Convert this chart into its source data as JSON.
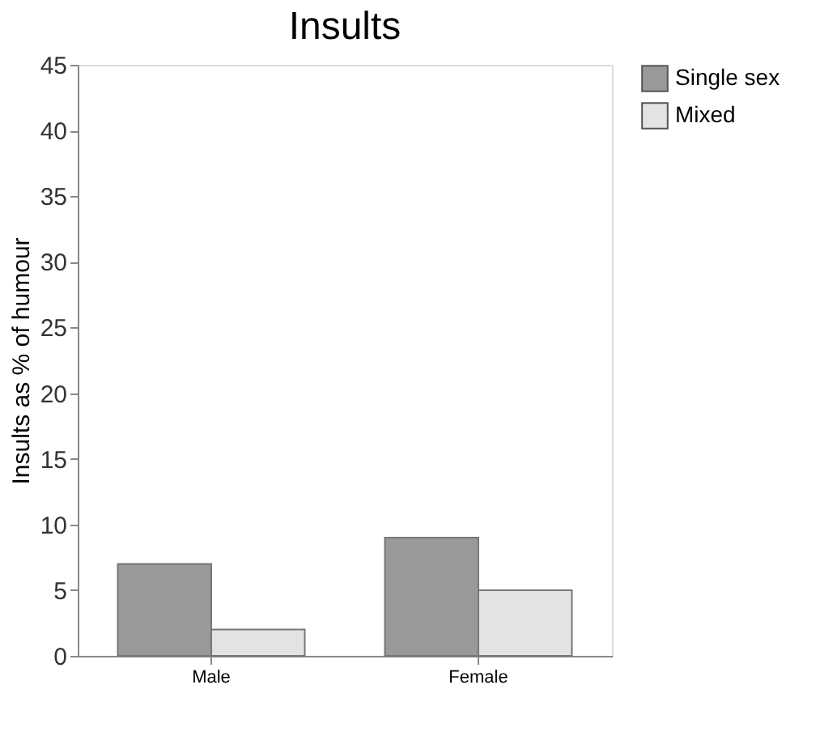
{
  "chart_data": {
    "type": "bar",
    "title": "Insults",
    "ylabel": "Insults as % of humour",
    "categories": [
      "Male",
      "Female"
    ],
    "series": [
      {
        "name": "Single sex",
        "color": "#999999",
        "values": [
          7,
          9
        ]
      },
      {
        "name": "Mixed",
        "color": "#e3e3e3",
        "values": [
          2,
          5
        ]
      }
    ],
    "ylim": [
      0,
      45
    ],
    "yticks": [
      0,
      5,
      10,
      15,
      20,
      25,
      30,
      35,
      40,
      45
    ],
    "grid": false,
    "legend": "right"
  }
}
